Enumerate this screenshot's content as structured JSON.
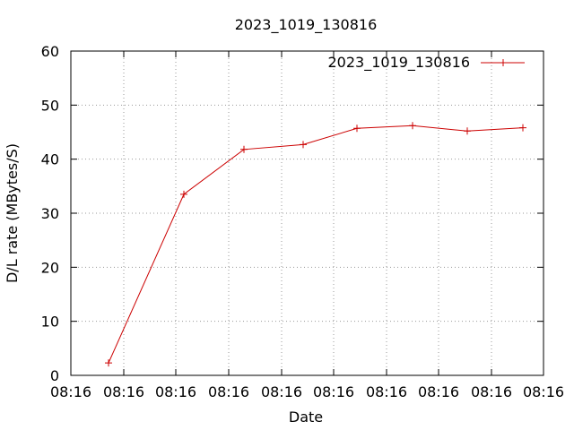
{
  "chart_data": {
    "type": "line",
    "title": "2023_1019_130816",
    "xlabel": "Date",
    "ylabel": "D/L rate (MBytes/S)",
    "ylim": [
      0,
      60
    ],
    "y_ticks": [
      "0",
      "10",
      "20",
      "30",
      "40",
      "50",
      "60"
    ],
    "x_ticks": [
      "08:16",
      "08:16",
      "08:16",
      "08:16",
      "08:16",
      "08:16",
      "08:16",
      "08:16",
      "08:16",
      "08:16"
    ],
    "grid": true,
    "legend_position": "top-right",
    "series": [
      {
        "name": "2023_1019_130816",
        "color": "#cc0000",
        "marker": "plus",
        "values": [
          2.3,
          33.5,
          41.8,
          42.7,
          45.7,
          46.2,
          45.2,
          45.8
        ]
      }
    ]
  }
}
